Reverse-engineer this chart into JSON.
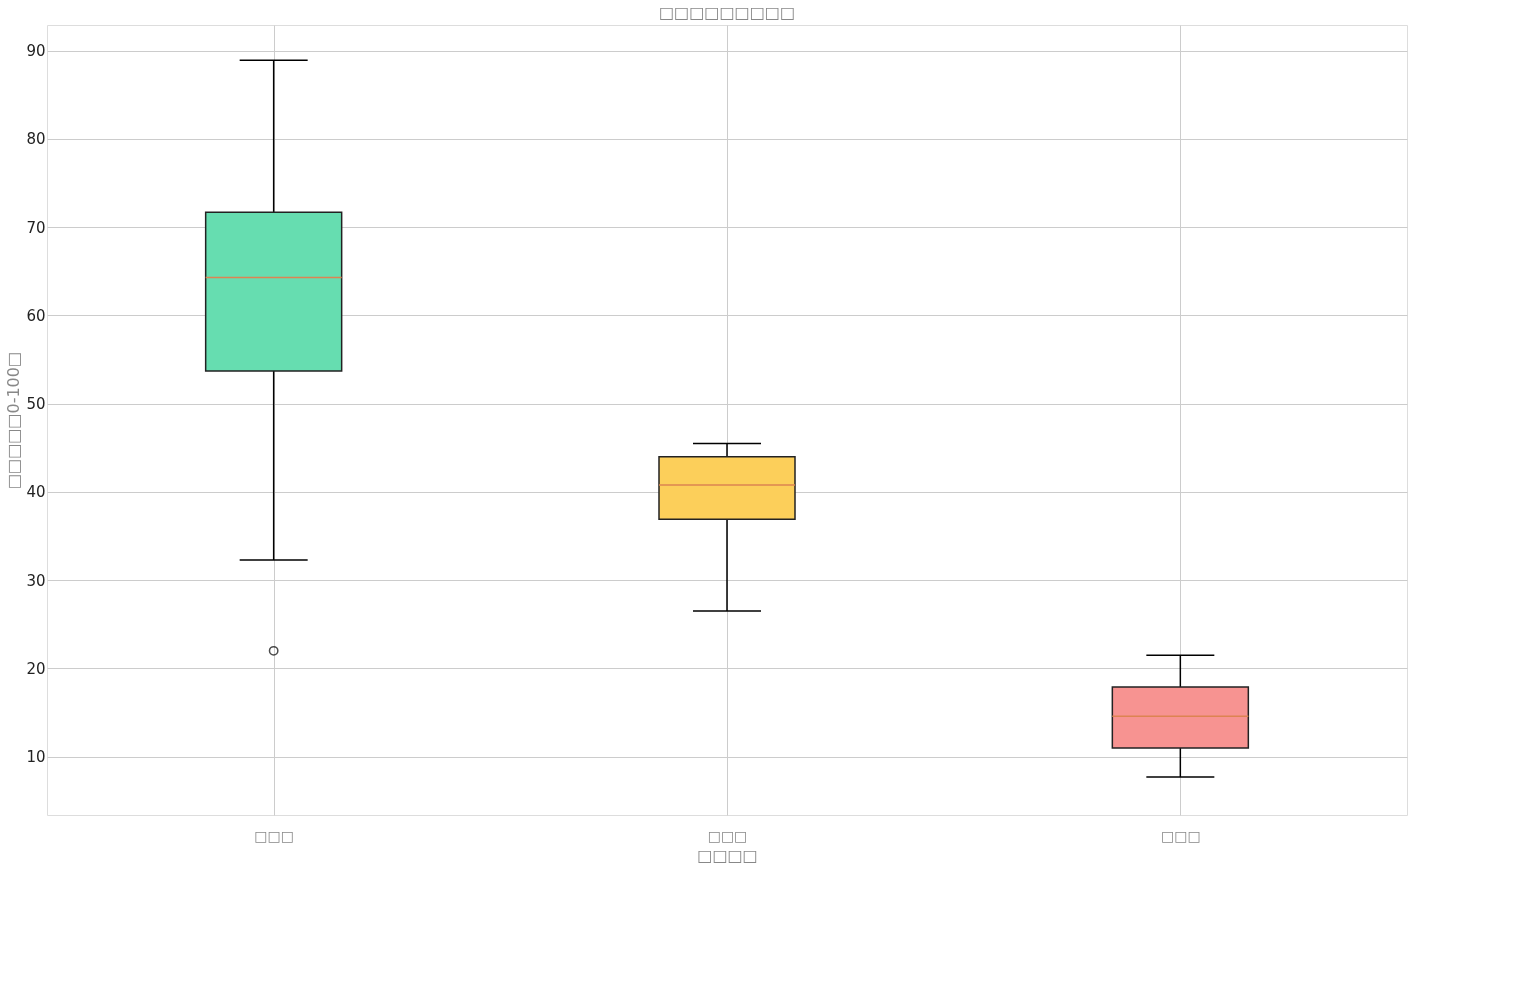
{
  "chart_data": {
    "type": "box",
    "title": "□□□□□□□□□",
    "xlabel": "□□□□",
    "ylabel": "□□□□□0-100□",
    "categories": [
      "□□□",
      "□□□",
      "□□□"
    ],
    "colors": [
      "#66ddb0",
      "#fccf5a",
      "#f79391"
    ],
    "boxes": [
      {
        "low": 32.3,
        "q1": 53.7,
        "median": 64.3,
        "q3": 71.7,
        "high": 88.9,
        "outliers": [
          22.0
        ]
      },
      {
        "low": 26.5,
        "q1": 36.9,
        "median": 40.8,
        "q3": 44.0,
        "high": 45.5
      },
      {
        "low": 7.7,
        "q1": 11.0,
        "median": 14.6,
        "q3": 17.9,
        "high": 21.5
      }
    ],
    "ylim": [
      3.4,
      92.9
    ],
    "yticks": [
      10,
      20,
      30,
      40,
      50,
      60,
      70,
      80,
      90
    ],
    "grid": true
  }
}
